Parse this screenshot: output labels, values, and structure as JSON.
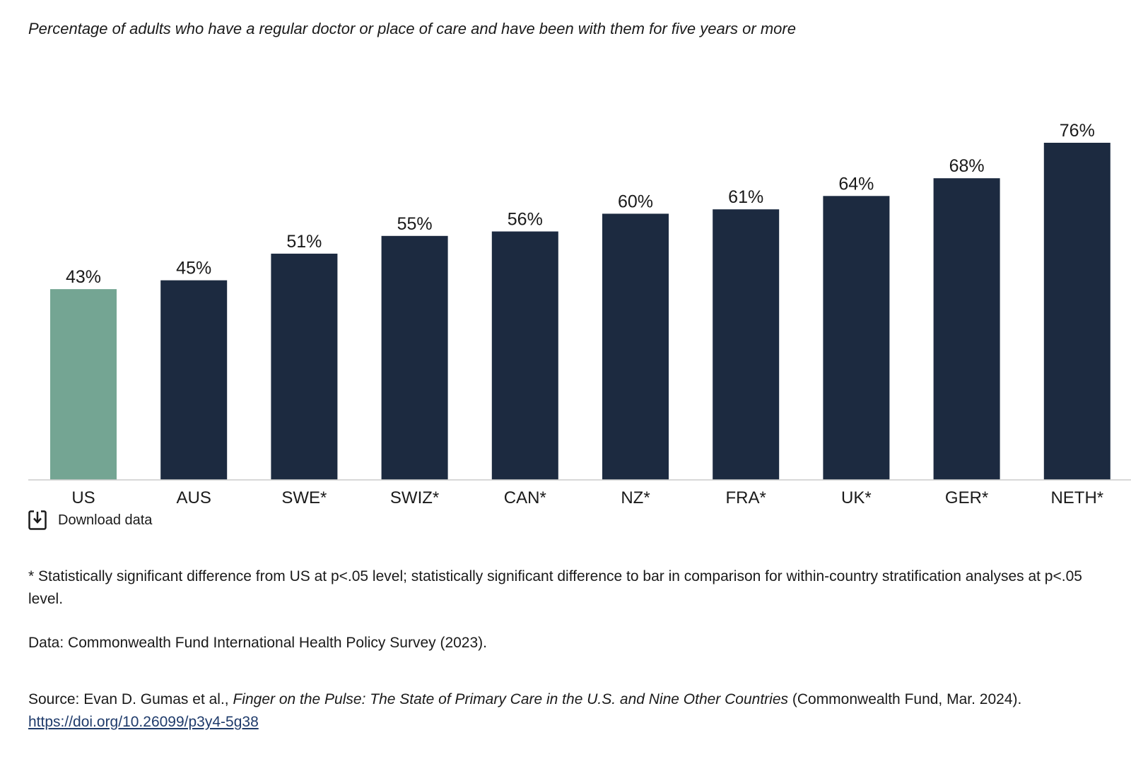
{
  "chart_data": {
    "type": "bar",
    "subtitle": "Percentage of adults who have a regular doctor or place of care and have been with them for five years or more",
    "categories": [
      "US",
      "AUS",
      "SWE*",
      "SWIZ*",
      "CAN*",
      "NZ*",
      "FRA*",
      "UK*",
      "GER*",
      "NETH*"
    ],
    "values": [
      43,
      45,
      51,
      55,
      56,
      60,
      61,
      64,
      68,
      76
    ],
    "value_labels": [
      "43%",
      "45%",
      "51%",
      "55%",
      "56%",
      "60%",
      "61%",
      "64%",
      "68%",
      "76%"
    ],
    "ylim": [
      0,
      100
    ],
    "grid": false,
    "colors": {
      "highlight": "#74a593",
      "default": "#1c2a40",
      "baseline": "#cccccc"
    },
    "highlight_index": 0
  },
  "download": {
    "label": "Download data",
    "icon": "download-icon"
  },
  "notes": {
    "significance": "* Statistically significant difference from US at p<.05 level; statistically significant difference to bar in comparison for within-country stratification analyses at p<.05 level.",
    "data": "Data: Commonwealth Fund International Health Policy Survey (2023).",
    "source_prefix": "Source: Evan D. Gumas et al., ",
    "source_title": "Finger on the Pulse: The State of Primary Care in the U.S. and Nine Other Countries",
    "source_suffix": " (Commonwealth Fund, Mar. 2024). ",
    "source_link": "https://doi.org/10.26099/p3y4-5g38"
  }
}
